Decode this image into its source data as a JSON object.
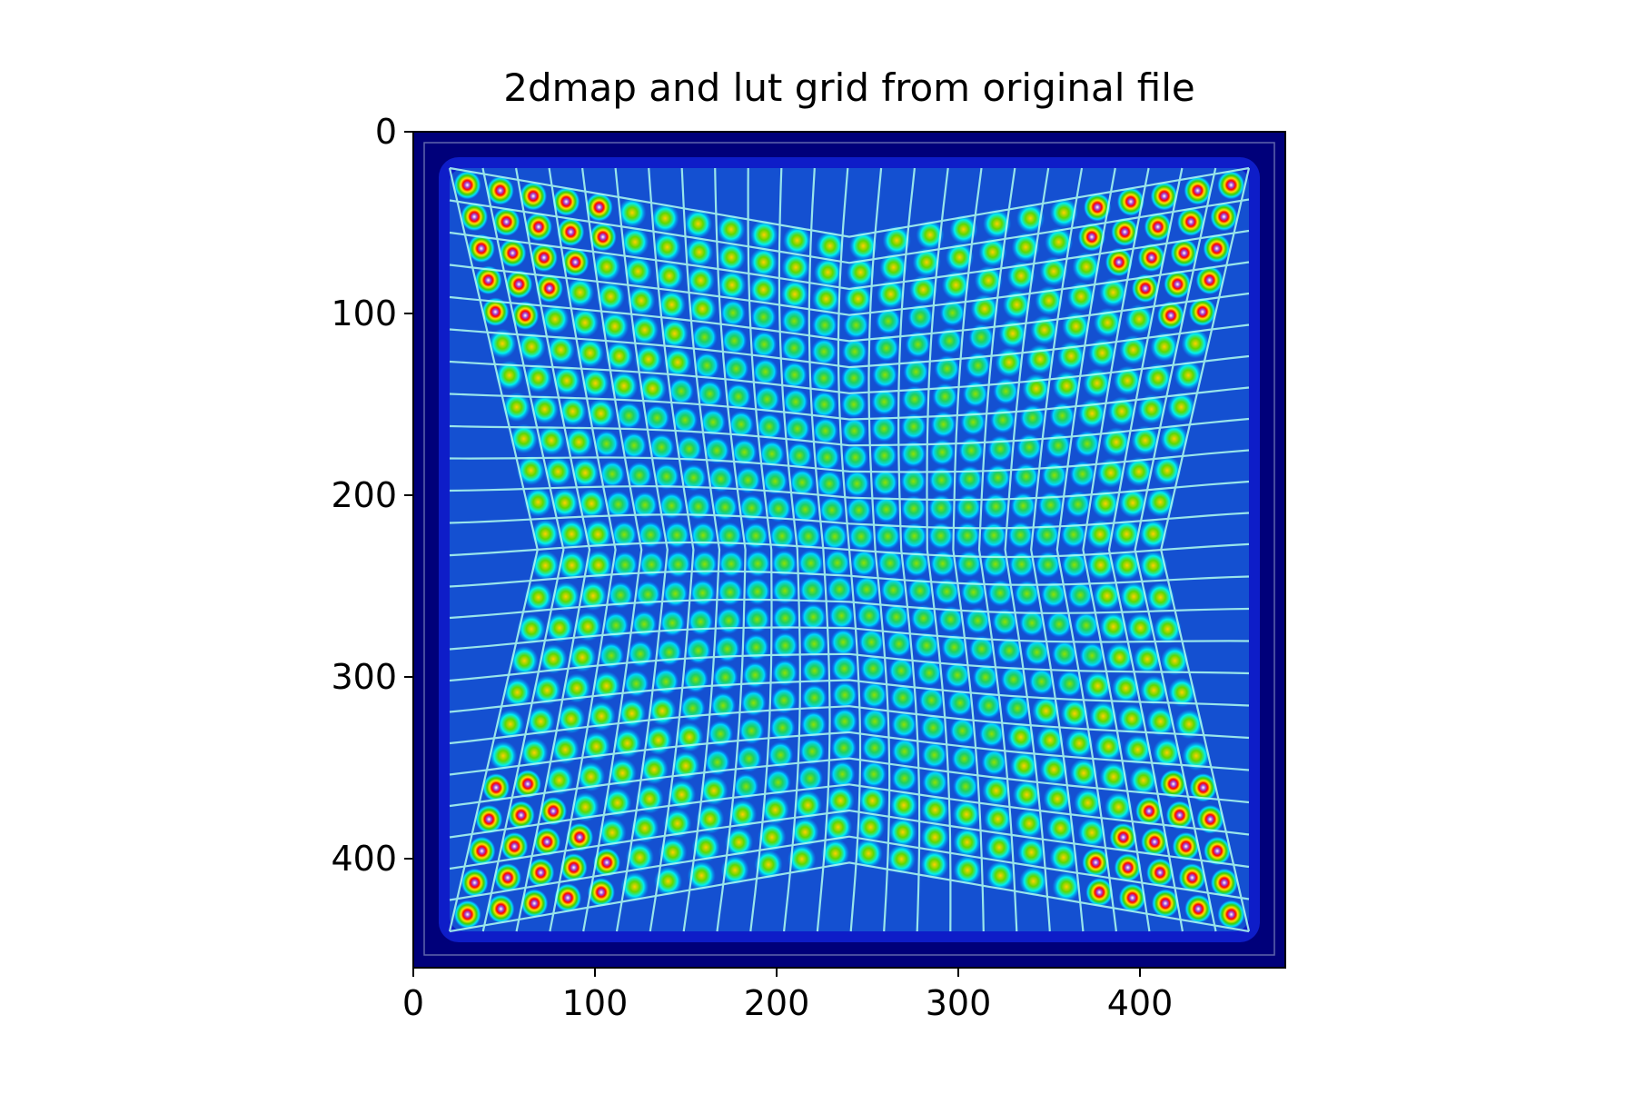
{
  "chart_data": {
    "type": "heatmap",
    "title": "2dmap and lut grid from original file",
    "xlabel": "",
    "ylabel": "",
    "xlim": [
      0,
      480
    ],
    "ylim": [
      460,
      0
    ],
    "x_ticks": [
      0,
      100,
      200,
      300,
      400
    ],
    "y_ticks": [
      0,
      100,
      200,
      300,
      400
    ],
    "colormap": "jet",
    "grid": true,
    "grid_overlay": "lut grid",
    "grid_rows": 24,
    "grid_cols": 24,
    "spot_pitch": 18.5,
    "spot_region": [
      20,
      20,
      460,
      440
    ],
    "colors": {
      "background": "#00007a",
      "grid_line": "#b0fff0",
      "frame_line": "#8890c0"
    }
  }
}
